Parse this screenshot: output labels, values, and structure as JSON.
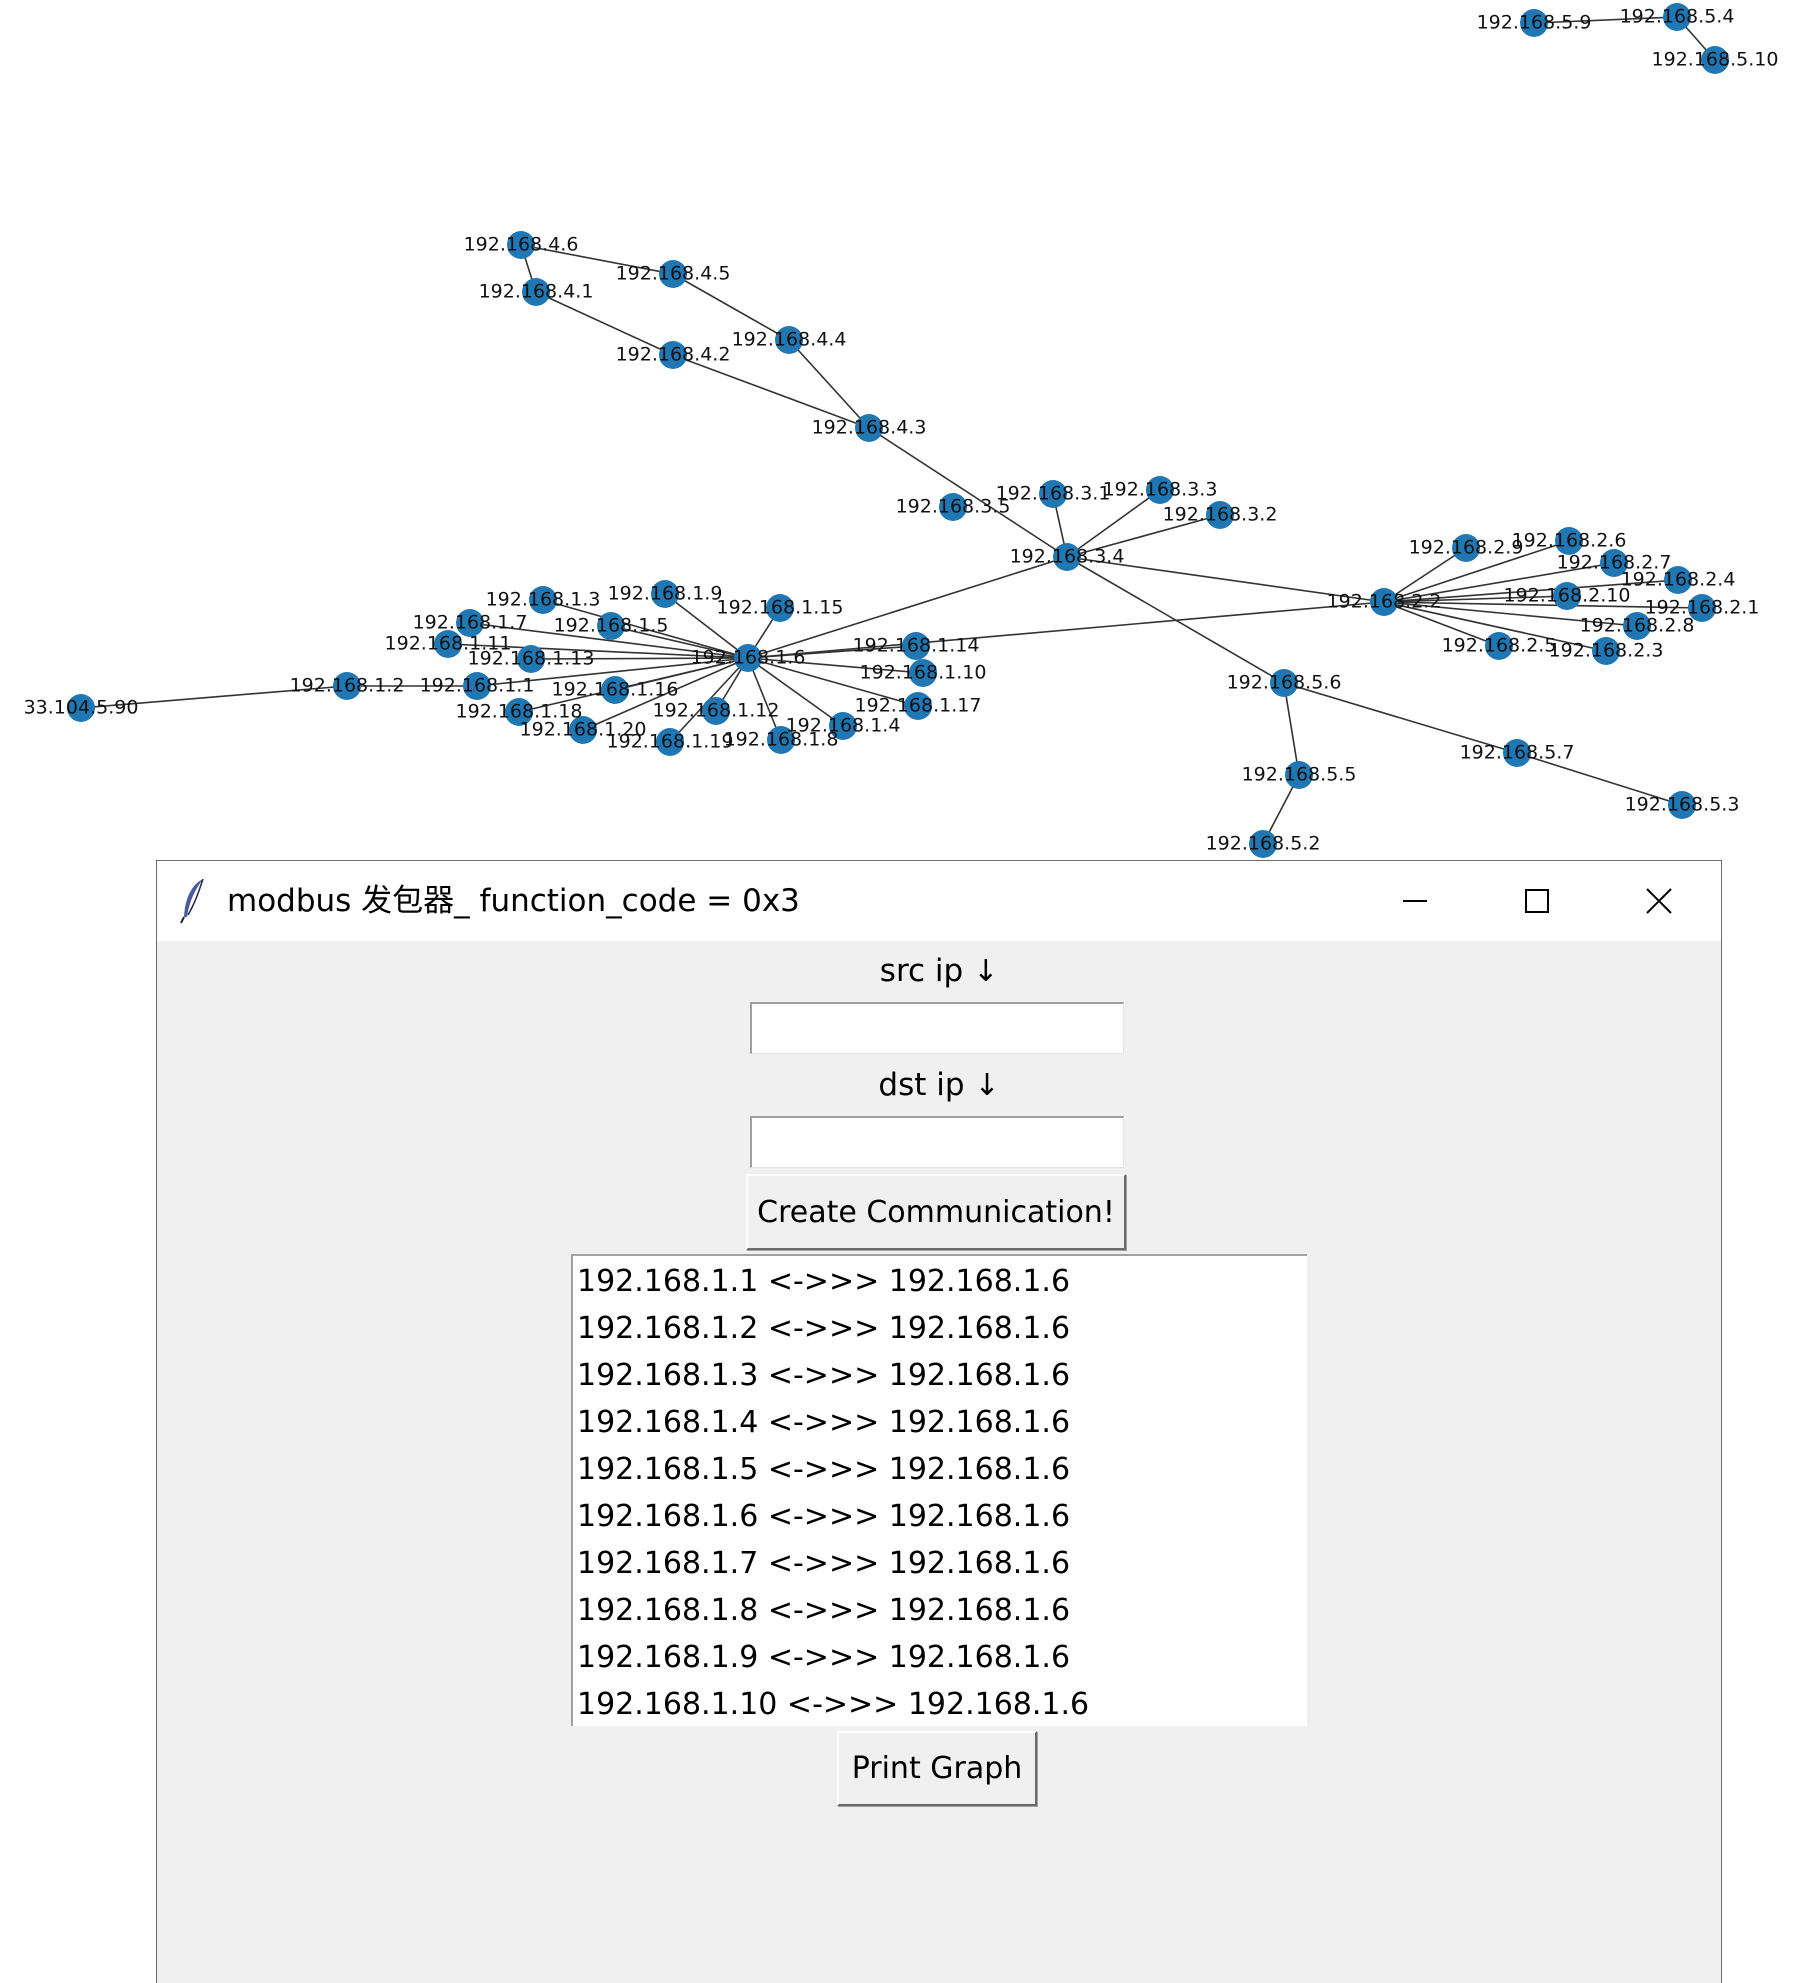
{
  "graph": {
    "node_color": "#1f77b4",
    "nodes": [
      "192.168.5.9",
      "192.168.5.4",
      "192.168.5.10",
      "192.168.4.6",
      "192.168.4.5",
      "192.168.4.1",
      "192.168.4.4",
      "192.168.4.2",
      "192.168.4.3",
      "192.168.3.5",
      "192.168.3.1",
      "192.168.3.3",
      "192.168.3.2",
      "192.168.3.4",
      "192.168.2.9",
      "192.168.2.6",
      "192.168.2.7",
      "192.168.2.4",
      "192.168.2.10",
      "192.168.2.1",
      "192.168.2.2",
      "192.168.2.8",
      "192.168.2.5",
      "192.168.2.3",
      "192.168.1.3",
      "192.168.1.9",
      "192.168.1.15",
      "192.168.1.7",
      "192.168.1.5",
      "192.168.1.11",
      "192.168.1.13",
      "192.168.1.6",
      "192.168.1.14",
      "192.168.1.10",
      "192.168.1.2",
      "192.168.1.1",
      "192.168.1.16",
      "192.168.1.18",
      "192.168.1.12",
      "192.168.1.17",
      "192.168.1.20",
      "192.168.1.4",
      "192.168.1.19",
      "192.168.1.8",
      "33.104.5.90",
      "192.168.5.6",
      "192.168.5.7",
      "192.168.5.5",
      "192.168.5.3",
      "192.168.5.2"
    ],
    "edges": [
      [
        "192.168.5.9",
        "192.168.5.4"
      ],
      [
        "192.168.5.4",
        "192.168.5.10"
      ],
      [
        "192.168.4.6",
        "192.168.4.5"
      ],
      [
        "192.168.4.6",
        "192.168.4.1"
      ],
      [
        "192.168.4.5",
        "192.168.4.4"
      ],
      [
        "192.168.4.1",
        "192.168.4.2"
      ],
      [
        "192.168.4.2",
        "192.168.4.3"
      ],
      [
        "192.168.4.4",
        "192.168.4.3"
      ],
      [
        "192.168.4.3",
        "192.168.3.4"
      ],
      [
        "192.168.3.1",
        "192.168.3.4"
      ],
      [
        "192.168.3.3",
        "192.168.3.4"
      ],
      [
        "192.168.3.2",
        "192.168.3.4"
      ],
      [
        "192.168.3.4",
        "192.168.1.6"
      ],
      [
        "192.168.3.4",
        "192.168.2.2"
      ],
      [
        "192.168.3.4",
        "192.168.5.6"
      ],
      [
        "192.168.2.2",
        "192.168.1.6"
      ],
      [
        "192.168.2.2",
        "192.168.2.9"
      ],
      [
        "192.168.2.2",
        "192.168.2.6"
      ],
      [
        "192.168.2.2",
        "192.168.2.7"
      ],
      [
        "192.168.2.2",
        "192.168.2.4"
      ],
      [
        "192.168.2.2",
        "192.168.2.10"
      ],
      [
        "192.168.2.2",
        "192.168.2.1"
      ],
      [
        "192.168.2.2",
        "192.168.2.8"
      ],
      [
        "192.168.2.2",
        "192.168.2.5"
      ],
      [
        "192.168.2.2",
        "192.168.2.3"
      ],
      [
        "192.168.1.6",
        "192.168.1.1"
      ],
      [
        "192.168.1.6",
        "192.168.1.3"
      ],
      [
        "192.168.1.6",
        "192.168.1.4"
      ],
      [
        "192.168.1.6",
        "192.168.1.5"
      ],
      [
        "192.168.1.6",
        "192.168.1.7"
      ],
      [
        "192.168.1.6",
        "192.168.1.8"
      ],
      [
        "192.168.1.6",
        "192.168.1.9"
      ],
      [
        "192.168.1.6",
        "192.168.1.10"
      ],
      [
        "192.168.1.6",
        "192.168.1.11"
      ],
      [
        "192.168.1.6",
        "192.168.1.12"
      ],
      [
        "192.168.1.6",
        "192.168.1.13"
      ],
      [
        "192.168.1.6",
        "192.168.1.14"
      ],
      [
        "192.168.1.6",
        "192.168.1.15"
      ],
      [
        "192.168.1.6",
        "192.168.1.16"
      ],
      [
        "192.168.1.6",
        "192.168.1.17"
      ],
      [
        "192.168.1.6",
        "192.168.1.18"
      ],
      [
        "192.168.1.6",
        "192.168.1.19"
      ],
      [
        "192.168.1.6",
        "192.168.1.20"
      ],
      [
        "192.168.1.1",
        "192.168.1.2"
      ],
      [
        "192.168.1.2",
        "33.104.5.90"
      ],
      [
        "192.168.5.6",
        "192.168.5.5"
      ],
      [
        "192.168.5.5",
        "192.168.5.2"
      ],
      [
        "192.168.5.6",
        "192.168.5.7"
      ],
      [
        "192.168.5.7",
        "192.168.5.3"
      ]
    ]
  },
  "window": {
    "title": "modbus 发包器_ function_code = 0x3",
    "icon": "feather-icon",
    "controls": [
      "minimize-icon",
      "maximize-icon",
      "close-icon"
    ]
  },
  "form": {
    "src_label": "src ip",
    "dst_label": "dst ip",
    "arrow": "↓",
    "src_value": "",
    "dst_value": "",
    "create_button": "Create Communication!",
    "print_button": "Print Graph"
  },
  "listbox": {
    "items": [
      "192.168.1.1 <->>> 192.168.1.6",
      "192.168.1.2 <->>> 192.168.1.6",
      "192.168.1.3 <->>> 192.168.1.6",
      "192.168.1.4 <->>> 192.168.1.6",
      "192.168.1.5 <->>> 192.168.1.6",
      "192.168.1.6 <->>> 192.168.1.6",
      "192.168.1.7 <->>> 192.168.1.6",
      "192.168.1.8 <->>> 192.168.1.6",
      "192.168.1.9 <->>> 192.168.1.6",
      "192.168.1.10 <->>> 192.168.1.6"
    ]
  }
}
